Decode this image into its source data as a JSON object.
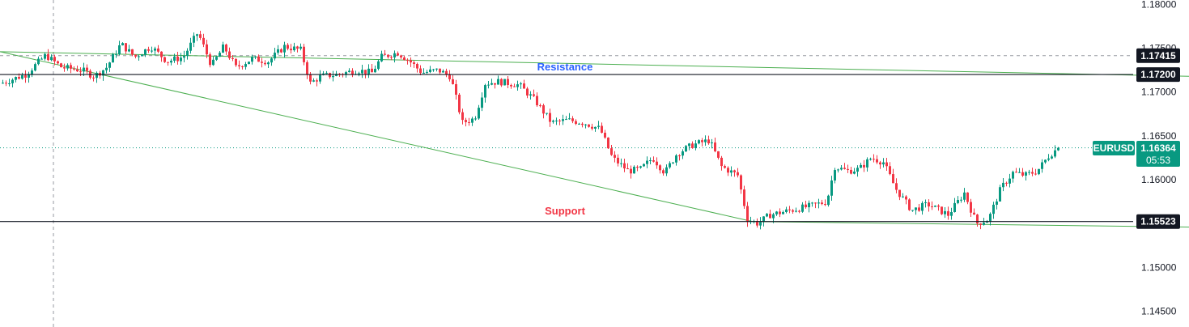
{
  "chart_data": {
    "type": "candlestick",
    "symbol": "EURUSD",
    "last_price": "1.16364",
    "countdown": "05:53",
    "y_ticks": [
      "1.18000",
      "1.17500",
      "1.17000",
      "1.16500",
      "1.16000",
      "1.15000",
      "1.14500"
    ],
    "ylim": [
      1.1432,
      1.1805
    ],
    "price_tags": [
      {
        "label": "1.17415",
        "value": 1.17415
      },
      {
        "label": "1.17200",
        "value": 1.172
      },
      {
        "label": "1.15523",
        "value": 1.15523
      }
    ],
    "annotations": {
      "resistance": {
        "text": "Resistance",
        "color": "#2962ff"
      },
      "support": {
        "text": "Support",
        "color": "#f23645"
      }
    },
    "horizontal_levels": [
      1.172,
      1.15523
    ],
    "dashed_level": 1.17415,
    "trendlines": [
      {
        "from": [
          0,
          1.1746
        ],
        "to": [
          1469,
          1.1718
        ]
      },
      {
        "from": [
          0,
          1.1746
        ],
        "to": [
          930,
          1.15523
        ]
      },
      {
        "from": [
          930,
          1.15523
        ],
        "to": [
          1469,
          1.1546
        ]
      }
    ],
    "close_path": [
      [
        0,
        1.171
      ],
      [
        30,
        1.172
      ],
      [
        55,
        1.1742
      ],
      [
        75,
        1.1728
      ],
      [
        100,
        1.1725
      ],
      [
        115,
        1.1718
      ],
      [
        130,
        1.1728
      ],
      [
        148,
        1.1755
      ],
      [
        165,
        1.174
      ],
      [
        185,
        1.1752
      ],
      [
        205,
        1.1735
      ],
      [
        225,
        1.174
      ],
      [
        243,
        1.1768
      ],
      [
        260,
        1.173
      ],
      [
        275,
        1.1752
      ],
      [
        290,
        1.1728
      ],
      [
        310,
        1.1738
      ],
      [
        330,
        1.1735
      ],
      [
        350,
        1.1752
      ],
      [
        370,
        1.1748
      ],
      [
        382,
        1.171
      ],
      [
        395,
        1.1718
      ],
      [
        415,
        1.172
      ],
      [
        440,
        1.1725
      ],
      [
        458,
        1.1722
      ],
      [
        470,
        1.174
      ],
      [
        490,
        1.1745
      ],
      [
        505,
        1.1735
      ],
      [
        520,
        1.1722
      ],
      [
        540,
        1.1725
      ],
      [
        555,
        1.1718
      ],
      [
        570,
        1.1665
      ],
      [
        585,
        1.167
      ],
      [
        598,
        1.171
      ],
      [
        615,
        1.1712
      ],
      [
        640,
        1.1708
      ],
      [
        660,
        1.169
      ],
      [
        680,
        1.1665
      ],
      [
        700,
        1.1668
      ],
      [
        720,
        1.1665
      ],
      [
        740,
        1.1658
      ],
      [
        755,
        1.1625
      ],
      [
        775,
        1.161
      ],
      [
        790,
        1.1612
      ],
      [
        805,
        1.1625
      ],
      [
        820,
        1.1608
      ],
      [
        835,
        1.163
      ],
      [
        855,
        1.164
      ],
      [
        875,
        1.1645
      ],
      [
        890,
        1.1615
      ],
      [
        910,
        1.1605
      ],
      [
        922,
        1.1555
      ],
      [
        935,
        1.155
      ],
      [
        950,
        1.156
      ],
      [
        975,
        1.1565
      ],
      [
        1000,
        1.157
      ],
      [
        1020,
        1.1575
      ],
      [
        1030,
        1.1615
      ],
      [
        1045,
        1.161
      ],
      [
        1060,
        1.1612
      ],
      [
        1075,
        1.1625
      ],
      [
        1090,
        1.162
      ],
      [
        1105,
        1.159
      ],
      [
        1125,
        1.1565
      ],
      [
        1145,
        1.1572
      ],
      [
        1170,
        1.156
      ],
      [
        1190,
        1.1585
      ],
      [
        1205,
        1.155
      ],
      [
        1220,
        1.1555
      ],
      [
        1235,
        1.159
      ],
      [
        1250,
        1.1608
      ],
      [
        1265,
        1.1605
      ],
      [
        1280,
        1.161
      ],
      [
        1295,
        1.1628
      ],
      [
        1306,
        1.16364
      ]
    ],
    "big_moves": [
      [
        382,
        1.1735
      ],
      [
        560,
        1.1665
      ],
      [
        755,
        1.165
      ],
      [
        922,
        1.16
      ],
      [
        1030,
        1.1575
      ],
      [
        1205,
        1.1592
      ],
      [
        1235,
        1.156
      ]
    ]
  }
}
